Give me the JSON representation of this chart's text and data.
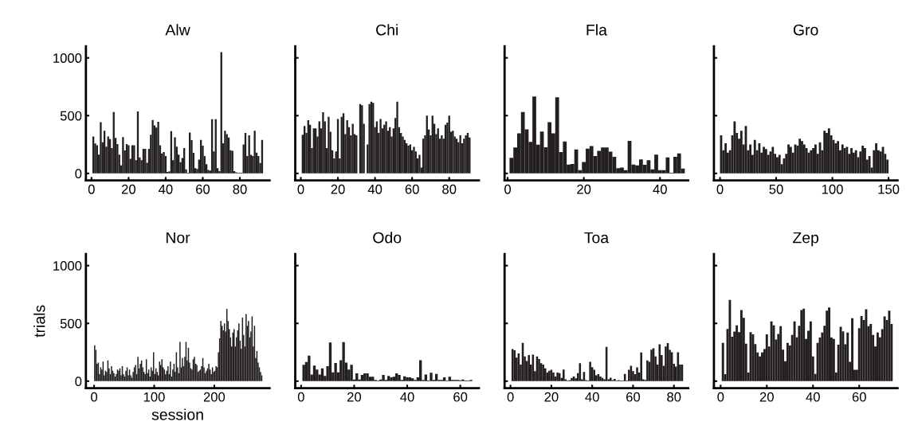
{
  "chart_data": [
    {
      "type": "bar",
      "title": "Alw",
      "color": "#231f20",
      "xlim": [
        -3,
        96
      ],
      "ylim": [
        -60,
        1100
      ],
      "xticks": [
        0,
        20,
        40,
        60,
        80
      ],
      "yticks": [
        0,
        500,
        1000
      ],
      "x": [
        1,
        2,
        3,
        4,
        5,
        6,
        7,
        8,
        9,
        10,
        11,
        12,
        13,
        14,
        15,
        16,
        17,
        18,
        19,
        20,
        21,
        22,
        23,
        24,
        25,
        26,
        27,
        28,
        29,
        30,
        31,
        32,
        33,
        34,
        35,
        36,
        37,
        38,
        39,
        40,
        41,
        42,
        43,
        44,
        45,
        46,
        47,
        48,
        49,
        50,
        51,
        52,
        53,
        54,
        55,
        56,
        57,
        58,
        59,
        60,
        61,
        62,
        63,
        64,
        65,
        66,
        67,
        68,
        69,
        70,
        71,
        72,
        73,
        74,
        75,
        76,
        77,
        78,
        79,
        80,
        81,
        82,
        83,
        84,
        85,
        86,
        87,
        88,
        89,
        90,
        91,
        92
      ],
      "values": [
        319,
        259,
        243,
        162,
        443,
        270,
        370,
        231,
        319,
        296,
        219,
        531,
        307,
        254,
        162,
        69,
        314,
        199,
        254,
        243,
        127,
        243,
        243,
        115,
        536,
        139,
        115,
        213,
        213,
        92,
        213,
        335,
        462,
        416,
        397,
        446,
        243,
        173,
        185,
        150,
        12,
        18,
        365,
        115,
        312,
        231,
        162,
        97,
        134,
        219,
        35,
        5,
        353,
        289,
        178,
        46,
        39,
        120,
        290,
        240,
        150,
        80,
        30,
        25,
        469,
        190,
        469,
        46,
        20,
        1049,
        260,
        370,
        340,
        310,
        200,
        196,
        20,
        10,
        5,
        5,
        5,
        250,
        350,
        150,
        330,
        160,
        150,
        370,
        180,
        150,
        90,
        290
      ]
    },
    {
      "type": "bar",
      "title": "Chi",
      "color": "#231f20",
      "xlim": [
        -3,
        96
      ],
      "ylim": [
        -60,
        1100
      ],
      "xticks": [
        0,
        20,
        40,
        60,
        80
      ],
      "yticks": [
        0,
        500,
        1000
      ],
      "tick_labels": "x",
      "x": [
        1,
        2,
        3,
        4,
        5,
        6,
        7,
        8,
        9,
        10,
        11,
        12,
        13,
        14,
        15,
        16,
        17,
        18,
        19,
        20,
        21,
        22,
        23,
        24,
        25,
        26,
        27,
        28,
        29,
        30,
        31,
        32,
        33,
        34,
        35,
        36,
        37,
        38,
        39,
        40,
        41,
        42,
        43,
        44,
        45,
        46,
        47,
        48,
        49,
        50,
        51,
        52,
        53,
        54,
        55,
        56,
        57,
        58,
        59,
        60,
        61,
        62,
        63,
        64,
        65,
        66,
        67,
        68,
        69,
        70,
        71,
        72,
        73,
        74,
        75,
        76,
        77,
        78,
        79,
        80,
        81,
        82,
        83,
        84,
        85,
        86,
        87,
        88,
        89,
        90,
        91
      ],
      "values": [
        335,
        410,
        350,
        460,
        420,
        220,
        390,
        390,
        320,
        450,
        390,
        530,
        450,
        220,
        490,
        360,
        200,
        130,
        190,
        470,
        130,
        490,
        520,
        340,
        460,
        400,
        330,
        430,
        340,
        330,
        0,
        600,
        590,
        430,
        0,
        250,
        600,
        620,
        610,
        400,
        450,
        350,
        470,
        390,
        420,
        450,
        370,
        400,
        320,
        390,
        480,
        620,
        400,
        350,
        320,
        290,
        260,
        240,
        250,
        200,
        230,
        190,
        130,
        160,
        50,
        300,
        330,
        500,
        380,
        330,
        500,
        430,
        340,
        390,
        300,
        330,
        300,
        420,
        440,
        500,
        360,
        370,
        320,
        300,
        270,
        330,
        260,
        300,
        330,
        350,
        310
      ]
    },
    {
      "type": "bar",
      "title": "Fla",
      "color": "#231f20",
      "xlim": [
        -0.8,
        47.4
      ],
      "ylim": [
        -60,
        1100
      ],
      "xticks": [
        0,
        20,
        40
      ],
      "yticks": [
        0,
        500,
        1000
      ],
      "tick_labels": "x",
      "x": [
        1,
        2,
        3,
        4,
        5,
        6,
        7,
        8,
        9,
        10,
        11,
        12,
        13,
        14,
        15,
        16,
        17,
        18,
        19,
        20,
        21,
        22,
        23,
        24,
        25,
        26,
        27,
        28,
        29,
        30,
        31,
        32,
        33,
        34,
        35,
        36,
        37,
        38,
        39,
        40,
        41,
        42,
        43,
        44,
        45,
        46
      ],
      "values": [
        135,
        224,
        346,
        531,
        381,
        273,
        665,
        249,
        363,
        226,
        443,
        346,
        658,
        185,
        277,
        76,
        81,
        208,
        28,
        99,
        215,
        236,
        150,
        196,
        224,
        224,
        189,
        143,
        46,
        51,
        28,
        282,
        76,
        69,
        122,
        74,
        115,
        35,
        162,
        28,
        28,
        139,
        5,
        143,
        173,
        42
      ]
    },
    {
      "type": "bar",
      "title": "Gro",
      "color": "#231f20",
      "xlim": [
        -5.4,
        158
      ],
      "ylim": [
        -60,
        1100
      ],
      "xticks": [
        0,
        50,
        100,
        150
      ],
      "yticks": [
        0,
        500,
        1000
      ],
      "tick_labels": "x",
      "x": [
        1,
        3,
        5,
        7,
        9,
        11,
        13,
        15,
        17,
        19,
        21,
        23,
        25,
        27,
        29,
        31,
        33,
        35,
        37,
        39,
        41,
        43,
        45,
        47,
        49,
        51,
        53,
        55,
        57,
        59,
        61,
        63,
        65,
        67,
        69,
        71,
        73,
        75,
        77,
        79,
        81,
        83,
        85,
        87,
        89,
        91,
        93,
        95,
        97,
        99,
        101,
        103,
        105,
        107,
        109,
        111,
        113,
        115,
        117,
        119,
        121,
        123,
        125,
        127,
        129,
        131,
        133,
        135,
        137,
        139,
        141,
        143,
        145,
        147,
        149
      ],
      "values": [
        330,
        200,
        260,
        180,
        200,
        330,
        450,
        350,
        300,
        370,
        250,
        410,
        200,
        250,
        160,
        290,
        200,
        260,
        180,
        230,
        210,
        160,
        190,
        230,
        170,
        140,
        160,
        80,
        130,
        170,
        250,
        230,
        180,
        250,
        240,
        300,
        280,
        250,
        220,
        180,
        200,
        220,
        250,
        170,
        270,
        200,
        370,
        350,
        390,
        330,
        290,
        260,
        280,
        200,
        250,
        220,
        230,
        170,
        220,
        180,
        200,
        140,
        190,
        240,
        220,
        120,
        150,
        50,
        200,
        260,
        200,
        190,
        230,
        170,
        120
      ]
    },
    {
      "type": "bar",
      "title": "Nor",
      "xlabel": "session",
      "ylabel": "trials",
      "color": "#231f20",
      "xlim": [
        -13.6,
        292
      ],
      "ylim": [
        -60,
        1100
      ],
      "xticks": [
        0,
        100,
        200
      ],
      "yticks": [
        0,
        500,
        1000
      ],
      "x": [
        1,
        3,
        5,
        7,
        9,
        11,
        13,
        15,
        17,
        19,
        21,
        23,
        25,
        27,
        29,
        31,
        33,
        35,
        37,
        39,
        41,
        43,
        45,
        47,
        49,
        51,
        53,
        55,
        57,
        59,
        61,
        63,
        65,
        67,
        69,
        71,
        73,
        75,
        77,
        79,
        81,
        83,
        85,
        87,
        89,
        91,
        93,
        95,
        97,
        99,
        101,
        103,
        105,
        107,
        109,
        111,
        113,
        115,
        117,
        119,
        121,
        123,
        125,
        127,
        129,
        131,
        133,
        135,
        137,
        139,
        141,
        143,
        145,
        147,
        149,
        151,
        153,
        155,
        157,
        159,
        161,
        163,
        165,
        167,
        169,
        171,
        173,
        175,
        177,
        179,
        181,
        183,
        185,
        187,
        189,
        191,
        193,
        195,
        197,
        199,
        201,
        203,
        205,
        207,
        209,
        211,
        213,
        215,
        217,
        219,
        221,
        223,
        225,
        227,
        229,
        231,
        233,
        235,
        237,
        239,
        241,
        243,
        245,
        247,
        249,
        251,
        253,
        255,
        257,
        259,
        261,
        263,
        265,
        267,
        269,
        271,
        273,
        275,
        277,
        279
      ],
      "values": [
        310,
        270,
        150,
        160,
        60,
        120,
        100,
        170,
        50,
        90,
        80,
        180,
        110,
        60,
        130,
        90,
        70,
        40,
        60,
        100,
        90,
        110,
        50,
        130,
        60,
        40,
        90,
        120,
        50,
        100,
        50,
        30,
        80,
        120,
        140,
        60,
        210,
        110,
        150,
        180,
        120,
        80,
        60,
        190,
        70,
        100,
        40,
        120,
        90,
        250,
        60,
        110,
        80,
        50,
        170,
        140,
        190,
        120,
        100,
        60,
        90,
        130,
        60,
        170,
        40,
        100,
        150,
        80,
        250,
        120,
        70,
        340,
        120,
        200,
        130,
        210,
        340,
        180,
        290,
        160,
        110,
        100,
        190,
        210,
        150,
        140,
        80,
        90,
        100,
        130,
        200,
        120,
        70,
        90,
        110,
        150,
        100,
        60,
        120,
        80,
        90,
        130,
        120,
        250,
        370,
        520,
        480,
        440,
        500,
        430,
        626,
        520,
        450,
        380,
        300,
        420,
        450,
        300,
        380,
        440,
        500,
        350,
        280,
        550,
        400,
        300,
        580,
        480,
        520,
        380,
        430,
        560,
        300,
        480,
        200,
        260,
        160,
        120,
        80,
        50
      ]
    },
    {
      "type": "bar",
      "title": "Odo",
      "color": "#231f20",
      "xlim": [
        -2.2,
        67
      ],
      "ylim": [
        -60,
        1100
      ],
      "xticks": [
        0,
        20,
        40,
        60
      ],
      "yticks": [
        0,
        500,
        1000
      ],
      "tick_labels": "x",
      "x": [
        1,
        2,
        3,
        4,
        5,
        6,
        7,
        8,
        9,
        10,
        11,
        12,
        13,
        14,
        15,
        16,
        17,
        18,
        19,
        20,
        21,
        22,
        23,
        24,
        25,
        26,
        27,
        28,
        29,
        30,
        31,
        32,
        33,
        34,
        35,
        36,
        37,
        38,
        39,
        40,
        41,
        42,
        43,
        44,
        45,
        46,
        47,
        48,
        49,
        50,
        51,
        52,
        53,
        54,
        55,
        56,
        57,
        58,
        59,
        60,
        61,
        62,
        63,
        64
      ],
      "values": [
        142,
        166,
        221,
        58,
        134,
        101,
        58,
        110,
        46,
        130,
        334,
        77,
        158,
        77,
        182,
        338,
        161,
        101,
        142,
        14,
        67,
        14,
        53,
        67,
        67,
        38,
        38,
        10,
        5,
        14,
        53,
        10,
        46,
        34,
        38,
        67,
        53,
        10,
        41,
        34,
        34,
        24,
        10,
        34,
        182,
        10,
        58,
        5,
        72,
        10,
        62,
        10,
        10,
        34,
        5,
        38,
        10,
        10,
        10,
        8,
        14,
        5,
        5,
        10
      ]
    },
    {
      "type": "bar",
      "title": "Toa",
      "color": "#231f20",
      "xlim": [
        -2.9,
        87
      ],
      "ylim": [
        -60,
        1100
      ],
      "xticks": [
        0,
        20,
        40,
        60,
        80
      ],
      "yticks": [
        0,
        500,
        1000
      ],
      "tick_labels": "x",
      "x": [
        1,
        2,
        3,
        4,
        5,
        6,
        7,
        8,
        9,
        10,
        11,
        12,
        13,
        14,
        15,
        16,
        17,
        18,
        19,
        20,
        21,
        22,
        23,
        24,
        25,
        26,
        27,
        28,
        29,
        30,
        31,
        32,
        33,
        34,
        35,
        36,
        37,
        38,
        39,
        40,
        41,
        42,
        43,
        44,
        45,
        46,
        47,
        48,
        49,
        50,
        51,
        52,
        53,
        54,
        55,
        56,
        57,
        58,
        59,
        60,
        61,
        62,
        63,
        64,
        65,
        66,
        67,
        68,
        69,
        70,
        71,
        72,
        73,
        74,
        75,
        76,
        77,
        78,
        79,
        80,
        81,
        82,
        83,
        84
      ],
      "values": [
        277,
        268,
        203,
        240,
        144,
        331,
        214,
        175,
        226,
        144,
        230,
        86,
        214,
        191,
        156,
        144,
        110,
        75,
        90,
        98,
        75,
        40,
        75,
        70,
        28,
        100,
        16,
        5,
        9,
        28,
        40,
        25,
        70,
        156,
        16,
        79,
        9,
        5,
        168,
        121,
        98,
        51,
        60,
        40,
        28,
        16,
        296,
        16,
        30,
        9,
        20,
        5,
        9,
        5,
        5,
        63,
        5,
        98,
        133,
        86,
        60,
        120,
        75,
        249,
        16,
        10,
        179,
        168,
        273,
        284,
        214,
        144,
        319,
        226,
        133,
        300,
        330,
        270,
        250,
        150,
        126,
        250,
        144,
        144
      ]
    },
    {
      "type": "bar",
      "title": "Zep",
      "color": "#231f20",
      "xlim": [
        -2.9,
        76.6
      ],
      "ylim": [
        -60,
        1100
      ],
      "xticks": [
        0,
        20,
        40,
        60
      ],
      "yticks": [
        0,
        500,
        1000
      ],
      "tick_labels": "x",
      "x": [
        1,
        2,
        3,
        4,
        5,
        6,
        7,
        8,
        9,
        10,
        11,
        12,
        13,
        14,
        15,
        16,
        17,
        18,
        19,
        20,
        21,
        22,
        23,
        24,
        25,
        26,
        27,
        28,
        29,
        30,
        31,
        32,
        33,
        34,
        35,
        36,
        37,
        38,
        39,
        40,
        41,
        42,
        43,
        44,
        45,
        46,
        47,
        48,
        49,
        50,
        51,
        52,
        53,
        54,
        55,
        56,
        57,
        58,
        59,
        60,
        61,
        62,
        63,
        64,
        65,
        66,
        67,
        68,
        69,
        70,
        71,
        72,
        73,
        74
      ],
      "values": [
        331,
        60,
        452,
        704,
        385,
        429,
        482,
        424,
        615,
        548,
        324,
        75,
        424,
        405,
        320,
        249,
        214,
        249,
        277,
        405,
        300,
        517,
        482,
        361,
        408,
        475,
        273,
        172,
        331,
        308,
        400,
        517,
        380,
        480,
        615,
        627,
        366,
        436,
        517,
        214,
        63,
        331,
        377,
        420,
        480,
        610,
        638,
        377,
        366,
        75,
        315,
        471,
        431,
        319,
        420,
        168,
        545,
        98,
        98,
        459,
        564,
        529,
        622,
        475,
        494,
        400,
        300,
        420,
        380,
        450,
        560,
        530,
        610,
        494
      ]
    }
  ]
}
